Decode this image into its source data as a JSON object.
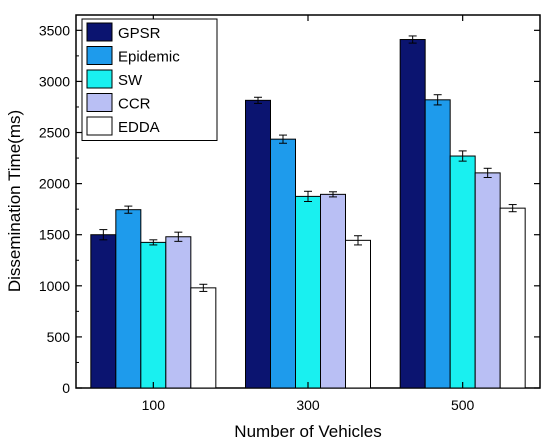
{
  "chart_data": {
    "type": "bar",
    "xlabel": "Number of Vehicles",
    "ylabel": "Dissemination Time(ms)",
    "categories": [
      "100",
      "300",
      "500"
    ],
    "ylim": [
      0,
      3650
    ],
    "yticks": [
      0,
      500,
      1000,
      1500,
      2000,
      2500,
      3000,
      3500
    ],
    "grid": false,
    "legend_position": "top-left",
    "series": [
      {
        "name": "GPSR",
        "color": "#0b1470",
        "values": [
          1500,
          2815,
          3410
        ],
        "errors": [
          50,
          30,
          35
        ]
      },
      {
        "name": "Epidemic",
        "color": "#1e9bec",
        "values": [
          1745,
          2435,
          2820
        ],
        "errors": [
          35,
          40,
          50
        ]
      },
      {
        "name": "SW",
        "color": "#19f0f0",
        "values": [
          1425,
          1875,
          2270
        ],
        "errors": [
          25,
          50,
          50
        ]
      },
      {
        "name": "CCR",
        "color": "#b9bff4",
        "values": [
          1480,
          1895,
          2105
        ],
        "errors": [
          45,
          25,
          45
        ]
      },
      {
        "name": "EDDA",
        "color": "#ffffff",
        "values": [
          980,
          1445,
          1760
        ],
        "errors": [
          35,
          45,
          35
        ]
      }
    ]
  }
}
